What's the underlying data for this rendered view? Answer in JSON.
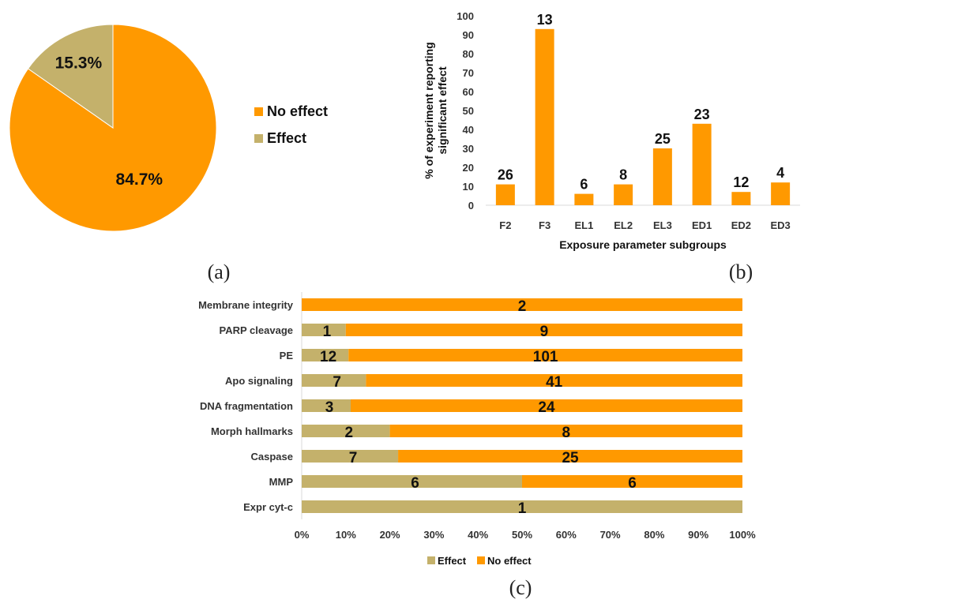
{
  "colors": {
    "no_effect": "#FF9900",
    "effect": "#C4B16B",
    "axis": "#D9D9D9",
    "pie_border": "#FFFFFF"
  },
  "panels": {
    "a": "(a)",
    "b": "(b)",
    "c": "(c)"
  },
  "chart_data": [
    {
      "type": "pie",
      "title": "",
      "slices": [
        {
          "name": "No effect",
          "value": 84.7,
          "label": "84.7%"
        },
        {
          "name": "Effect",
          "value": 15.3,
          "label": "15.3%"
        }
      ],
      "legend": {
        "position": "right",
        "entries": [
          "No effect",
          "Effect"
        ]
      }
    },
    {
      "type": "bar",
      "title": "",
      "categories": [
        "F2",
        "F3",
        "EL1",
        "EL2",
        "EL3",
        "ED1",
        "ED2",
        "ED3"
      ],
      "values": [
        11,
        93,
        6,
        11,
        30,
        43,
        7,
        12
      ],
      "data_labels": [
        "26",
        "13",
        "6",
        "8",
        "25",
        "23",
        "12",
        "4"
      ],
      "xlabel": "Exposure parameter subgroups",
      "ylabel": [
        "% of experiment reporting",
        "significant effect"
      ],
      "ylim": [
        0,
        100
      ],
      "yticks": [
        0,
        10,
        20,
        30,
        40,
        50,
        60,
        70,
        80,
        90,
        100
      ],
      "grid": false
    },
    {
      "type": "bar",
      "orientation": "horizontal",
      "stacked": "percent",
      "title": "",
      "categories": [
        "Membrane integrity",
        "PARP cleavage",
        "PE",
        "Apo signaling",
        "DNA fragmentation",
        "Morph hallmarks",
        "Caspase",
        "MMP",
        "Expr cyt-c"
      ],
      "series": [
        {
          "name": "Effect",
          "values": [
            0,
            1,
            12,
            7,
            3,
            2,
            7,
            6,
            1
          ],
          "labels": [
            "",
            "1",
            "12",
            "7",
            "3",
            "2",
            "7",
            "6",
            "1"
          ]
        },
        {
          "name": "No effect",
          "values": [
            2,
            9,
            101,
            41,
            24,
            8,
            25,
            6,
            0
          ],
          "labels": [
            "2",
            "9",
            "101",
            "41",
            "24",
            "8",
            "25",
            "6",
            ""
          ]
        }
      ],
      "xticks": [
        "0%",
        "10%",
        "20%",
        "30%",
        "40%",
        "50%",
        "60%",
        "70%",
        "80%",
        "90%",
        "100%"
      ],
      "xlim": [
        0,
        100
      ],
      "legend": {
        "position": "bottom",
        "entries": [
          "Effect",
          "No effect"
        ]
      },
      "grid": false
    }
  ]
}
